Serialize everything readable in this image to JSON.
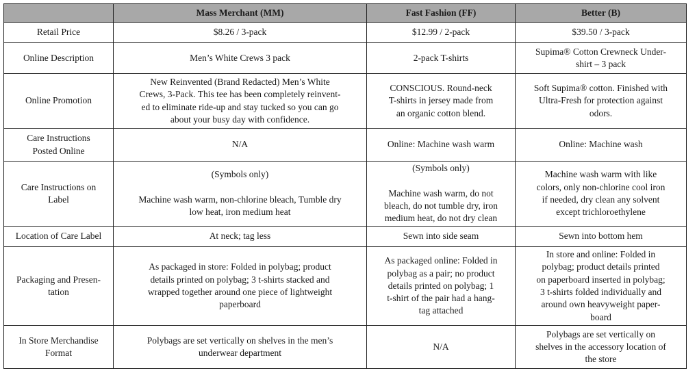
{
  "columns": [
    "",
    "Mass Merchant (MM)",
    "Fast Fashion (FF)",
    "Better (B)"
  ],
  "colors": {
    "header_background": "#a8a8a8",
    "border": "#222222"
  },
  "rows": [
    {
      "label": "Retail Price",
      "cells": [
        "$8.26 / 3-pack",
        "$12.99 / 2-pack",
        "$39.50 / 3-pack"
      ]
    },
    {
      "label": "Online Description",
      "cells": [
        "Men’s White Crews 3 pack",
        "2-pack T-shirts",
        "Supima® Cotton Crewneck Under-\nshirt – 3 pack"
      ]
    },
    {
      "label": "Online Promotion",
      "cells": [
        "New Reinvented (Brand Redacted) Men’s White\nCrews, 3-Pack.  This tee has been completely reinvent-\ned to eliminate ride-up and stay tucked so you can go\nabout your busy day with confidence.",
        "CONSCIOUS. Round-neck\nT-shirts in jersey made from\nan organic cotton blend.",
        "Soft Supima® cotton.  Finished with\nUltra-Fresh for protection against\nodors."
      ]
    },
    {
      "label": "Care Instructions\nPosted Online",
      "cells": [
        "N/A",
        "Online: Machine wash warm",
        "Online: Machine wash"
      ]
    },
    {
      "label": "Care Instructions on\nLabel",
      "cells": [
        "(Symbols only)\n\nMachine wash warm, non-chlorine bleach, Tumble dry\nlow heat, iron medium heat",
        "(Symbols only)\n\nMachine wash warm, do not\nbleach, do not tumble dry, iron\nmedium heat, do not dry clean",
        "Machine wash warm with like\ncolors, only non-chlorine cool iron\nif needed, dry clean any solvent\nexcept trichloroethylene"
      ]
    },
    {
      "label": "Location of Care Label",
      "cells": [
        "At neck; tag less",
        "Sewn into side seam",
        "Sewn into bottom hem"
      ]
    },
    {
      "label": "Packaging and Presen-\ntation",
      "cells": [
        "As packaged in store: Folded in polybag; product\ndetails printed on polybag; 3 t-shirts stacked and\nwrapped together around one piece of lightweight\npaperboard",
        "As packaged online: Folded in\npolybag as a pair; no product\ndetails printed on polybag; 1\nt-shirt of the pair had a hang-\ntag attached",
        "In store and online: Folded in\npolybag; product details printed\non paperboard inserted in polybag;\n3 t-shirts folded individually and\naround own heavyweight paper-\nboard"
      ]
    },
    {
      "label": "In Store Merchandise\nFormat",
      "cells": [
        "Polybags are set vertically on shelves in the men’s\nunderwear department",
        "N/A",
        "Polybags are set vertically on\nshelves in the accessory location of\nthe store"
      ]
    }
  ]
}
